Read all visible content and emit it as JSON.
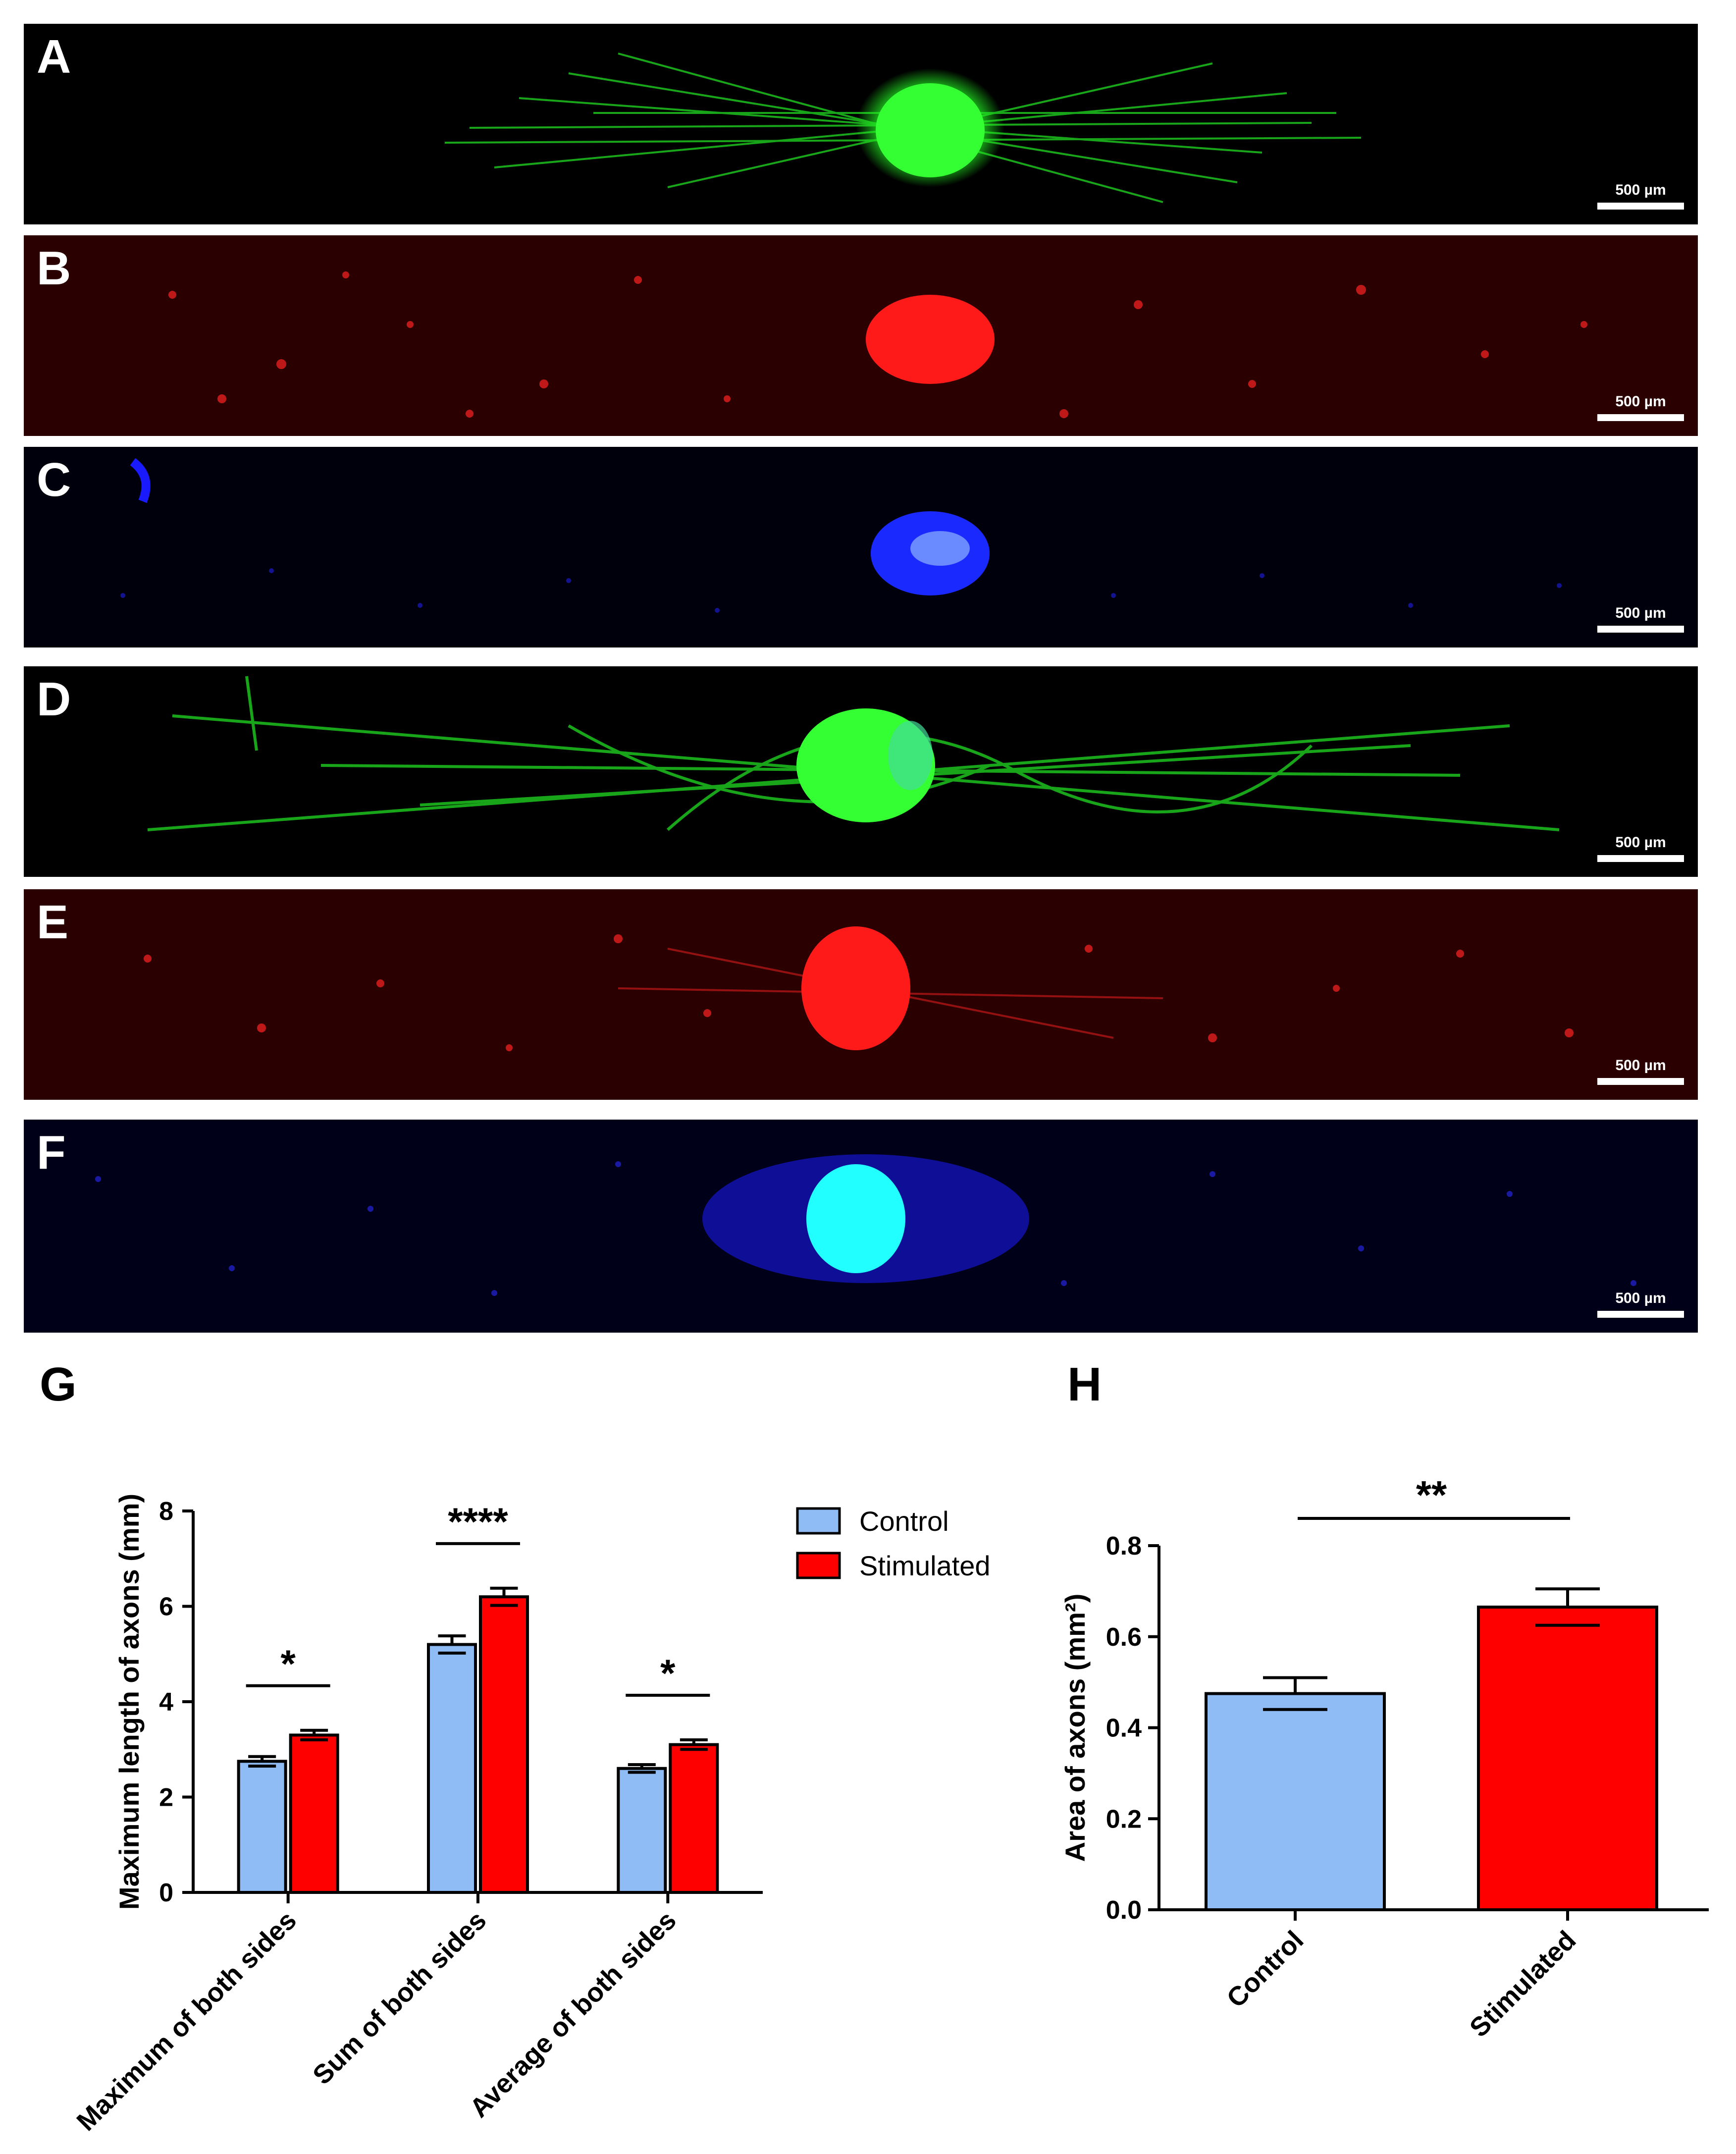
{
  "panels": [
    {
      "letter": "A",
      "scale_label": "500 µm",
      "color": "#22ee22"
    },
    {
      "letter": "B",
      "scale_label": "500 µm",
      "color": "#ff1a1a"
    },
    {
      "letter": "C",
      "scale_label": "500 µm",
      "color": "#1a1aff"
    },
    {
      "letter": "D",
      "scale_label": "500 µm",
      "color": "#22ee22"
    },
    {
      "letter": "E",
      "scale_label": "500 µm",
      "color": "#ff1a1a"
    },
    {
      "letter": "F",
      "scale_label": "500 µm",
      "color": "#1a1aff"
    }
  ],
  "chart_letters": {
    "g": "G",
    "h": "H"
  },
  "colors": {
    "control": "#8fbcf5",
    "stimulated": "#ff0000"
  },
  "chart_data": [
    {
      "type": "bar",
      "panel": "G",
      "ylabel": "Maximum length of axons (mm)",
      "xlabel": "",
      "categories": [
        "Maximum of both sides",
        "Sum of both sides",
        "Average of both sides"
      ],
      "series": [
        {
          "name": "Control",
          "values": [
            2.75,
            5.2,
            2.6
          ],
          "errors": [
            0.1,
            0.18,
            0.08
          ]
        },
        {
          "name": "Stimulated",
          "values": [
            3.3,
            6.2,
            3.1
          ],
          "errors": [
            0.1,
            0.18,
            0.1
          ]
        }
      ],
      "significance": [
        "*",
        "****",
        "*"
      ],
      "ylim": [
        0,
        8
      ],
      "yticks": [
        "0",
        "2",
        "4",
        "6",
        "8"
      ],
      "legend": "top-right",
      "grid": false
    },
    {
      "type": "bar",
      "panel": "H",
      "ylabel": "Area of axons (mm²)",
      "xlabel": "",
      "categories": [
        "Control",
        "Stimulated"
      ],
      "values": [
        0.475,
        0.665
      ],
      "errors": [
        0.035,
        0.04
      ],
      "significance": "**",
      "ylim": [
        0,
        0.8
      ],
      "yticks": [
        "0.0",
        "0.2",
        "0.4",
        "0.6",
        "0.8"
      ],
      "grid": false
    }
  ]
}
